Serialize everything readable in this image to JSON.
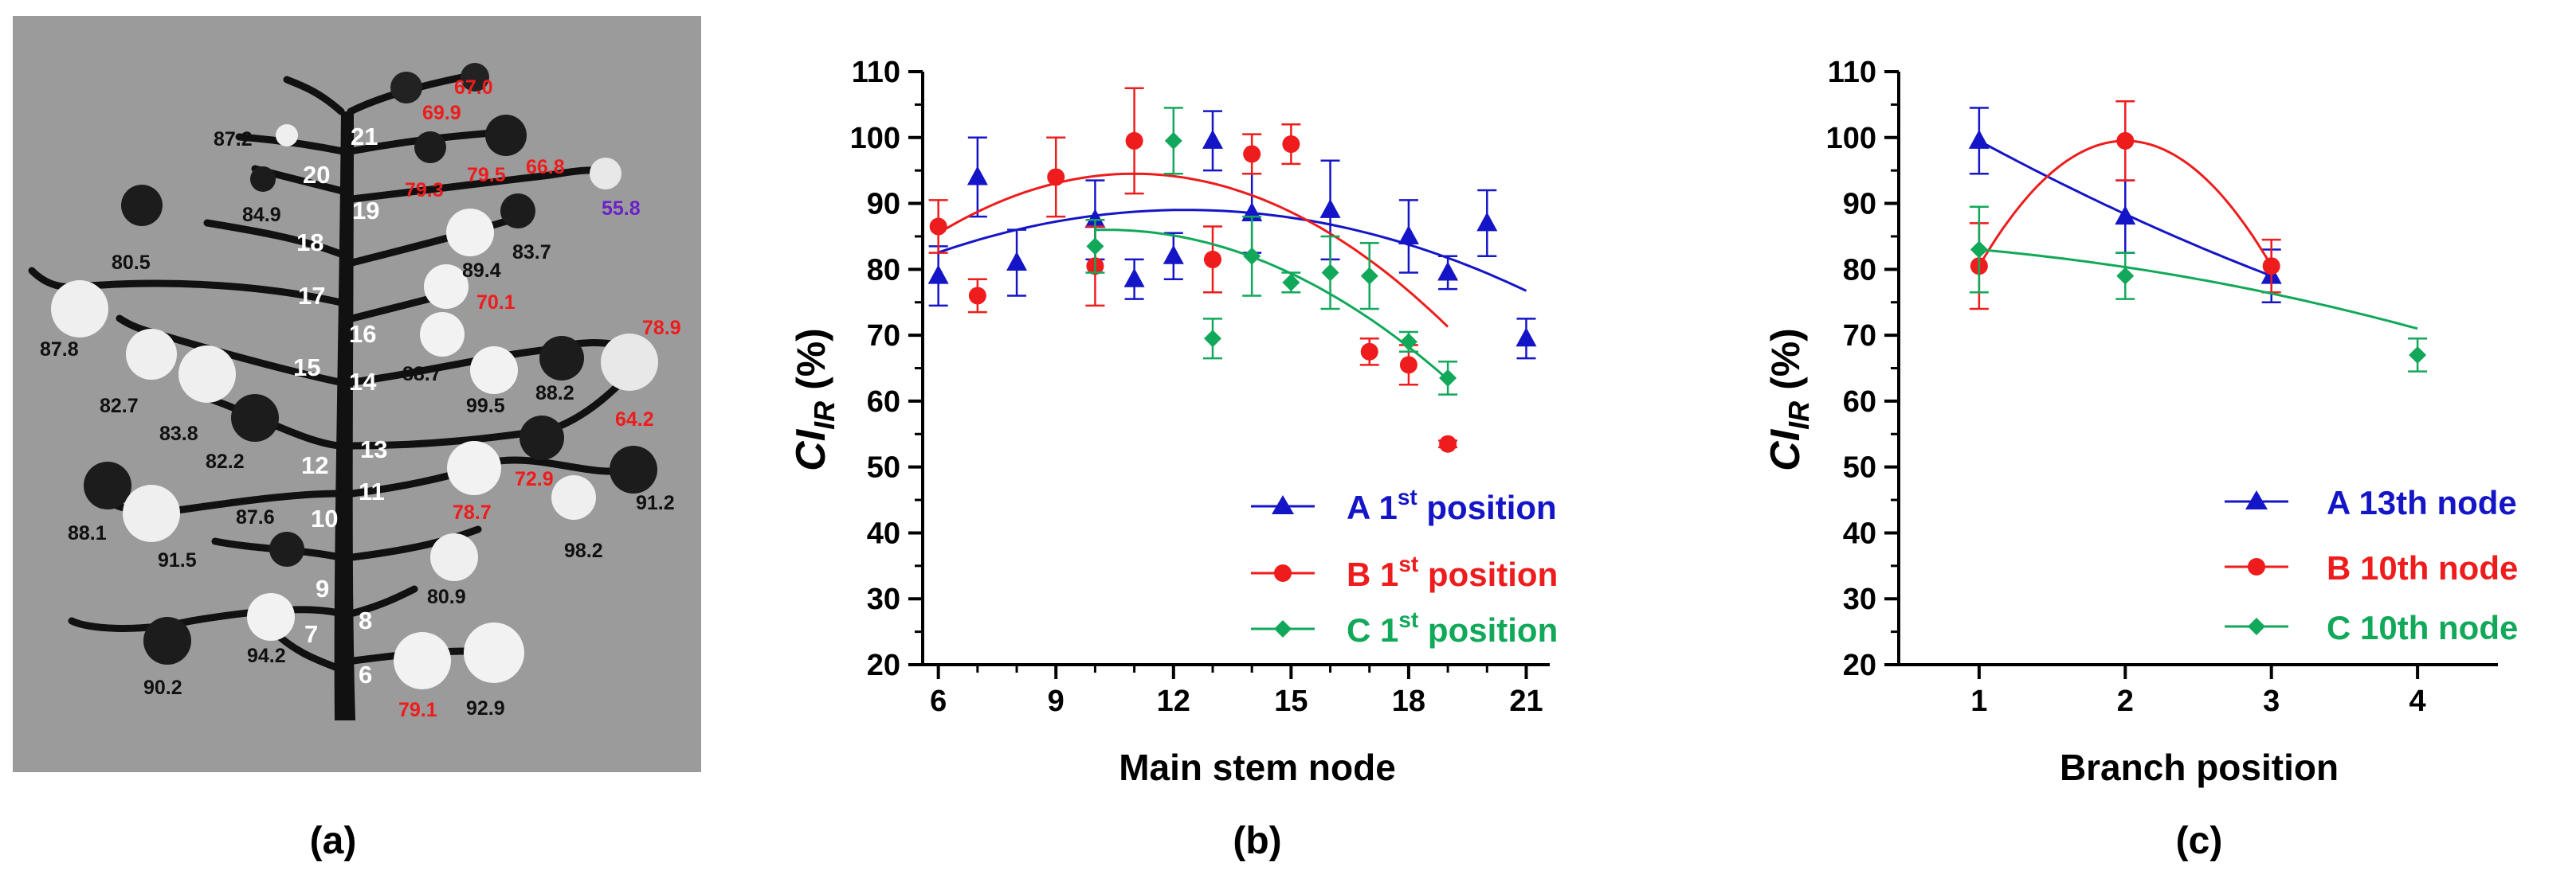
{
  "panel_labels": {
    "a": "(a)",
    "b": "(b)",
    "c": "(c)"
  },
  "colors": {
    "A": "#1515c8",
    "B": "#ee1c1c",
    "C": "#11a85a",
    "purple": "#6a22c8",
    "black": "#111111",
    "red": "#ee1c1c"
  },
  "plant_image": {
    "description": "cotton plant with boll-level CI values",
    "node_numbers": [
      "6",
      "7",
      "8",
      "9",
      "10",
      "11",
      "12",
      "13",
      "14",
      "15",
      "16",
      "17",
      "18",
      "19",
      "20",
      "21"
    ],
    "values": [
      {
        "text": "67.0",
        "color": "red"
      },
      {
        "text": "69.9",
        "color": "red"
      },
      {
        "text": "87.2",
        "color": "black"
      },
      {
        "text": "79.5",
        "color": "red"
      },
      {
        "text": "66.8",
        "color": "red"
      },
      {
        "text": "79.3",
        "color": "red"
      },
      {
        "text": "84.9",
        "color": "black"
      },
      {
        "text": "55.8",
        "color": "purple"
      },
      {
        "text": "80.5",
        "color": "black"
      },
      {
        "text": "83.7",
        "color": "black"
      },
      {
        "text": "89.4",
        "color": "black"
      },
      {
        "text": "70.1",
        "color": "red"
      },
      {
        "text": "87.8",
        "color": "black"
      },
      {
        "text": "78.9",
        "color": "red"
      },
      {
        "text": "88.7",
        "color": "black"
      },
      {
        "text": "82.7",
        "color": "black"
      },
      {
        "text": "99.5",
        "color": "black"
      },
      {
        "text": "88.2",
        "color": "black"
      },
      {
        "text": "83.8",
        "color": "black"
      },
      {
        "text": "82.2",
        "color": "black"
      },
      {
        "text": "64.2",
        "color": "red"
      },
      {
        "text": "72.9",
        "color": "red"
      },
      {
        "text": "91.2",
        "color": "black"
      },
      {
        "text": "88.1",
        "color": "black"
      },
      {
        "text": "87.6",
        "color": "black"
      },
      {
        "text": "78.7",
        "color": "red"
      },
      {
        "text": "98.2",
        "color": "black"
      },
      {
        "text": "91.5",
        "color": "black"
      },
      {
        "text": "80.9",
        "color": "black"
      },
      {
        "text": "94.2",
        "color": "black"
      },
      {
        "text": "90.2",
        "color": "black"
      },
      {
        "text": "79.1",
        "color": "red"
      },
      {
        "text": "92.9",
        "color": "black"
      }
    ]
  },
  "chart_data": [
    {
      "id": "b",
      "type": "scatter",
      "xlabel": "Main stem node",
      "ylabel_main": "CI",
      "ylabel_sub": "IR",
      "ylabel_tail": " (%)",
      "xlim": [
        5.6,
        21.6
      ],
      "ylim": [
        20,
        110
      ],
      "xticks": [
        6,
        9,
        12,
        15,
        18,
        21
      ],
      "yticks": [
        20,
        30,
        40,
        50,
        60,
        70,
        80,
        90,
        100,
        110
      ],
      "series": [
        {
          "key": "A",
          "legend_prefix": "A 1",
          "legend_sup": "st",
          "legend_suffix": " position",
          "marker": "triangle",
          "x": [
            6,
            7,
            8,
            10,
            11,
            12,
            13,
            14,
            16,
            18,
            19,
            20,
            21
          ],
          "y": [
            79.0,
            94.0,
            81.0,
            87.5,
            78.5,
            82.0,
            99.5,
            88.5,
            89.0,
            85.0,
            79.5,
            87.0,
            69.5
          ],
          "err": [
            4.5,
            6.0,
            5.0,
            6.0,
            3.0,
            3.5,
            4.5,
            6.0,
            7.5,
            5.5,
            2.5,
            5.0,
            3.0
          ],
          "fit": [
            -0.1625,
            4.0,
            64.4
          ]
        },
        {
          "key": "B",
          "legend_prefix": "B 1",
          "legend_sup": "st",
          "legend_suffix": " position",
          "marker": "circle",
          "x": [
            6,
            7,
            9,
            10,
            11,
            13,
            14,
            15,
            17,
            18,
            19
          ],
          "y": [
            86.5,
            76.0,
            94.0,
            80.5,
            99.5,
            81.5,
            97.5,
            99.0,
            67.5,
            65.5,
            53.5
          ],
          "err": [
            4.0,
            2.5,
            6.0,
            6.0,
            8.0,
            5.0,
            3.0,
            3.0,
            2.0,
            3.0,
            0.5
          ],
          "fit": [
            -0.3625,
            7.97,
            50.7
          ]
        },
        {
          "key": "C",
          "legend_prefix": "C 1",
          "legend_sup": "st",
          "legend_suffix": " position",
          "marker": "diamond",
          "x": [
            10,
            12,
            13,
            14,
            15,
            16,
            17,
            18,
            19
          ],
          "y": [
            83.5,
            99.5,
            69.5,
            82.0,
            78.0,
            79.5,
            79.0,
            69.0,
            63.5
          ],
          "err": [
            4.0,
            5.0,
            3.0,
            6.0,
            1.5,
            5.5,
            5.0,
            1.5,
            2.5
          ],
          "fit": [
            -0.3,
            6.18,
            54.17
          ]
        }
      ]
    },
    {
      "id": "c",
      "type": "scatter",
      "xlabel": "Branch position",
      "ylabel_main": "CI",
      "ylabel_sub": "IR",
      "ylabel_tail": " (%)",
      "xlim": [
        0.45,
        4.55
      ],
      "ylim": [
        20,
        110
      ],
      "xticks": [
        1,
        2,
        3,
        4
      ],
      "yticks": [
        20,
        30,
        40,
        50,
        60,
        70,
        80,
        90,
        100,
        110
      ],
      "series": [
        {
          "key": "A",
          "legend_text": "A 13th node",
          "marker": "triangle",
          "x": [
            1,
            2,
            3
          ],
          "y": [
            99.5,
            88.0,
            79.0
          ],
          "err": [
            5.0,
            5.5,
            4.0
          ],
          "fit": [
            0.875,
            -13.75,
            112.375
          ]
        },
        {
          "key": "B",
          "legend_text": "B 10th node",
          "marker": "circle",
          "x": [
            1,
            2,
            3
          ],
          "y": [
            80.5,
            99.5,
            80.5
          ],
          "err": [
            6.5,
            6.0,
            4.0
          ],
          "fit": [
            -19.0,
            76.0,
            23.5
          ]
        },
        {
          "key": "C",
          "legend_text": "C 10th node",
          "marker": "diamond",
          "x": [
            1,
            2,
            4
          ],
          "y": [
            83.0,
            79.0,
            67.0
          ],
          "err": [
            6.5,
            3.5,
            2.5
          ],
          "fit": [
            -0.6667,
            -0.6667,
            84.3333
          ]
        }
      ]
    }
  ]
}
